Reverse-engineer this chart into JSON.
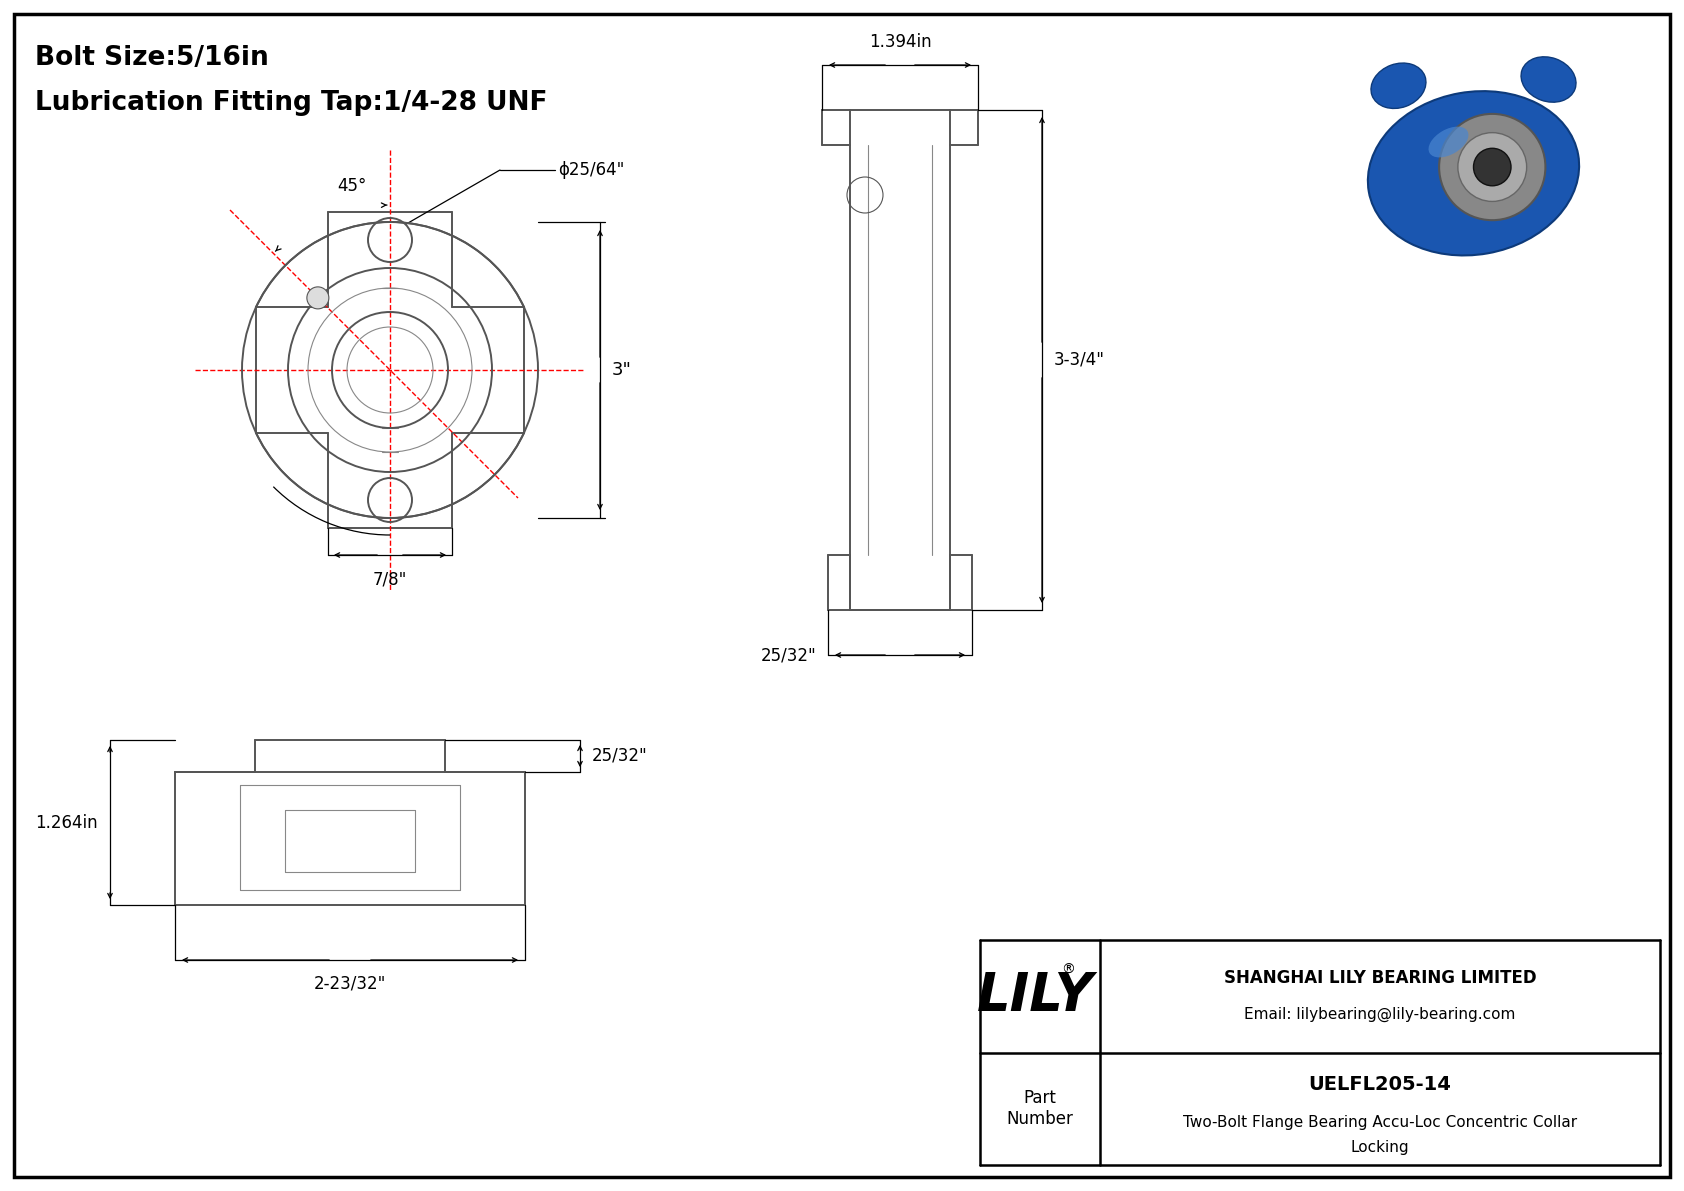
{
  "bg_color": "#ffffff",
  "border_color": "#000000",
  "line_color": "#000000",
  "red_color": "#ff0000",
  "title_line1": "Bolt Size:5/16in",
  "title_line2": "Lubrication Fitting Tap:1/4-28 UNF",
  "company_name": "SHANGHAI LILY BEARING LIMITED",
  "company_email": "Email: lilybearing@lily-bearing.com",
  "part_number": "UELFL205-14",
  "part_desc": "Two-Bolt Flange Bearing Accu-Loc Concentric Collar",
  "part_desc2": "Locking",
  "part_label": "Part\nNumber",
  "lily_text": "LILY",
  "dim_45": "45°",
  "dim_phi": "ϕ25/64\"",
  "dim_3": "3\"",
  "dim_7_8": "7/8\"",
  "dim_1394": "1.394in",
  "dim_3_34": "3-3/4\"",
  "dim_25_32_side": "25/32\"",
  "dim_25_32_bot": "25/32\"",
  "dim_1264": "1.264in",
  "dim_2_23_32": "2-23/32\""
}
